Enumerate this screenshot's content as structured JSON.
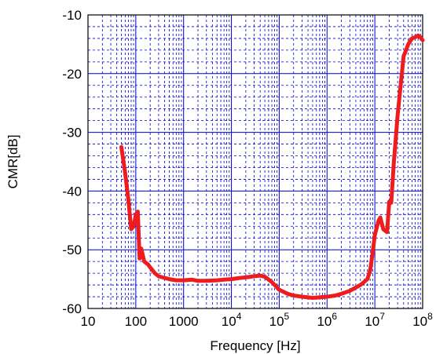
{
  "chart_data": {
    "type": "line",
    "title": "",
    "xlabel": "Frequency [Hz]",
    "ylabel": "CMR[dB]",
    "x_scale": "log",
    "xlim": [
      10,
      100000000
    ],
    "ylim": [
      -60,
      -10
    ],
    "grid": true,
    "y_ticks": [
      "-60",
      "-50",
      "-40",
      "-30",
      "-20",
      "-10"
    ],
    "x_ticks": [
      {
        "base": "10",
        "exp": ""
      },
      {
        "base": "100",
        "exp": ""
      },
      {
        "base": "1000",
        "exp": ""
      },
      {
        "base": "10",
        "exp": "4"
      },
      {
        "base": "10",
        "exp": "5"
      },
      {
        "base": "10",
        "exp": "6"
      },
      {
        "base": "10",
        "exp": "7"
      },
      {
        "base": "10",
        "exp": "8"
      }
    ],
    "line_color": "#ee1c1c",
    "grid_color": "#0000cc",
    "series": [
      {
        "x": [
          50,
          60,
          70,
          80,
          90,
          100,
          110,
          120,
          130,
          150,
          180,
          200,
          250,
          300,
          400,
          500,
          700,
          1000,
          1500,
          2000,
          3000,
          5000,
          7000,
          10000,
          15000,
          20000,
          30000,
          40000,
          50000,
          70000,
          100000,
          150000,
          200000,
          300000,
          500000,
          700000,
          1000000,
          1500000,
          2000000,
          3000000,
          5000000,
          7000000,
          8000000,
          9000000,
          10000000,
          12000000,
          13000000,
          15000000,
          18000000,
          20000000,
          22000000,
          25000000,
          30000000,
          40000000,
          45000000,
          50000000,
          60000000,
          70000000,
          80000000,
          90000000,
          100000000
        ],
        "y": [
          -32.5,
          -37,
          -41.5,
          -46.5,
          -46,
          -44,
          -43.5,
          -51.5,
          -49.8,
          -52,
          -52.5,
          -53,
          -54,
          -54.5,
          -54.8,
          -55,
          -55.2,
          -55.2,
          -55.1,
          -55.3,
          -55.3,
          -55.2,
          -55.1,
          -55.0,
          -54.8,
          -54.7,
          -54.5,
          -54.4,
          -54.6,
          -55.5,
          -56.8,
          -57.5,
          -57.8,
          -58.0,
          -58.2,
          -58.1,
          -58.0,
          -57.8,
          -57.5,
          -57.0,
          -56.0,
          -55.0,
          -53.5,
          -50.5,
          -47.5,
          -45.0,
          -44.5,
          -46.5,
          -47.0,
          -41.8,
          -42.0,
          -35.0,
          -27.0,
          -17.0,
          -16.0,
          -15.0,
          -14.0,
          -13.8,
          -13.5,
          -13.8,
          -14.3
        ]
      }
    ]
  }
}
